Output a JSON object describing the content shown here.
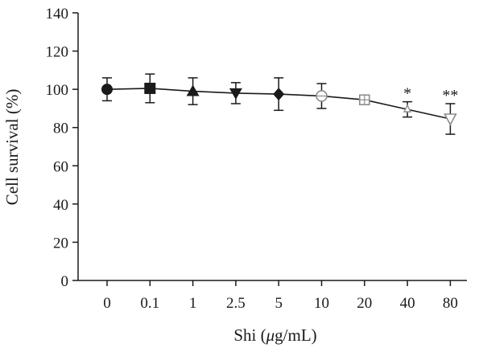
{
  "chart_data": {
    "type": "line",
    "title": "",
    "xlabel": "Shi (μg/mL)",
    "ylabel": "Cell survival (%)",
    "ylim": [
      0,
      140
    ],
    "yticks": [
      0,
      20,
      40,
      60,
      80,
      100,
      120,
      140
    ],
    "categories": [
      "0",
      "0.1",
      "1",
      "2.5",
      "5",
      "10",
      "20",
      "40",
      "80"
    ],
    "series": [
      {
        "values": [
          100,
          100.5,
          99,
          98,
          97.5,
          96.5,
          94.5,
          89.5,
          84.5
        ],
        "error": [
          6,
          7.5,
          7,
          5.5,
          8.5,
          6.5,
          1.5,
          4,
          8
        ],
        "markers": [
          "filled-circle",
          "filled-square",
          "filled-triangle-up",
          "filled-triangle-down",
          "filled-diamond",
          "open-circle",
          "open-square-cross",
          "open-triangle-up-small",
          "open-triangle-down"
        ],
        "significance": [
          "",
          "",
          "",
          "",
          "",
          "",
          "",
          "*",
          "**"
        ]
      }
    ],
    "colors": {
      "line": "#1a1a1a",
      "open_marker": "#8c8c8c",
      "axis": "#1a1a1a"
    },
    "grid": false,
    "legend": "none"
  }
}
